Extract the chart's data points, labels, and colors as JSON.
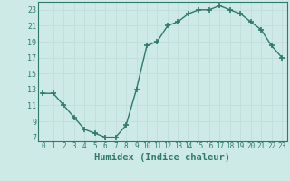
{
  "x": [
    0,
    1,
    2,
    3,
    4,
    5,
    6,
    7,
    8,
    9,
    10,
    11,
    12,
    13,
    14,
    15,
    16,
    17,
    18,
    19,
    20,
    21,
    22,
    23
  ],
  "y": [
    12.5,
    12.5,
    11.0,
    9.5,
    8.0,
    7.5,
    7.0,
    7.0,
    8.5,
    13.0,
    18.5,
    19.0,
    21.0,
    21.5,
    22.5,
    23.0,
    23.0,
    23.5,
    23.0,
    22.5,
    21.5,
    20.5,
    18.5,
    17.0
  ],
  "xlabel": "Humidex (Indice chaleur)",
  "ylim": [
    6.5,
    24.0
  ],
  "xlim": [
    -0.5,
    23.5
  ],
  "yticks": [
    7,
    9,
    11,
    13,
    15,
    17,
    19,
    21,
    23
  ],
  "xticks": [
    0,
    1,
    2,
    3,
    4,
    5,
    6,
    7,
    8,
    9,
    10,
    11,
    12,
    13,
    14,
    15,
    16,
    17,
    18,
    19,
    20,
    21,
    22,
    23
  ],
  "line_color": "#2d7a6b",
  "bg_color": "#ceeae7",
  "grid_color": "#c0ddd9",
  "marker": "+",
  "marker_size": 4,
  "linewidth": 1.0
}
